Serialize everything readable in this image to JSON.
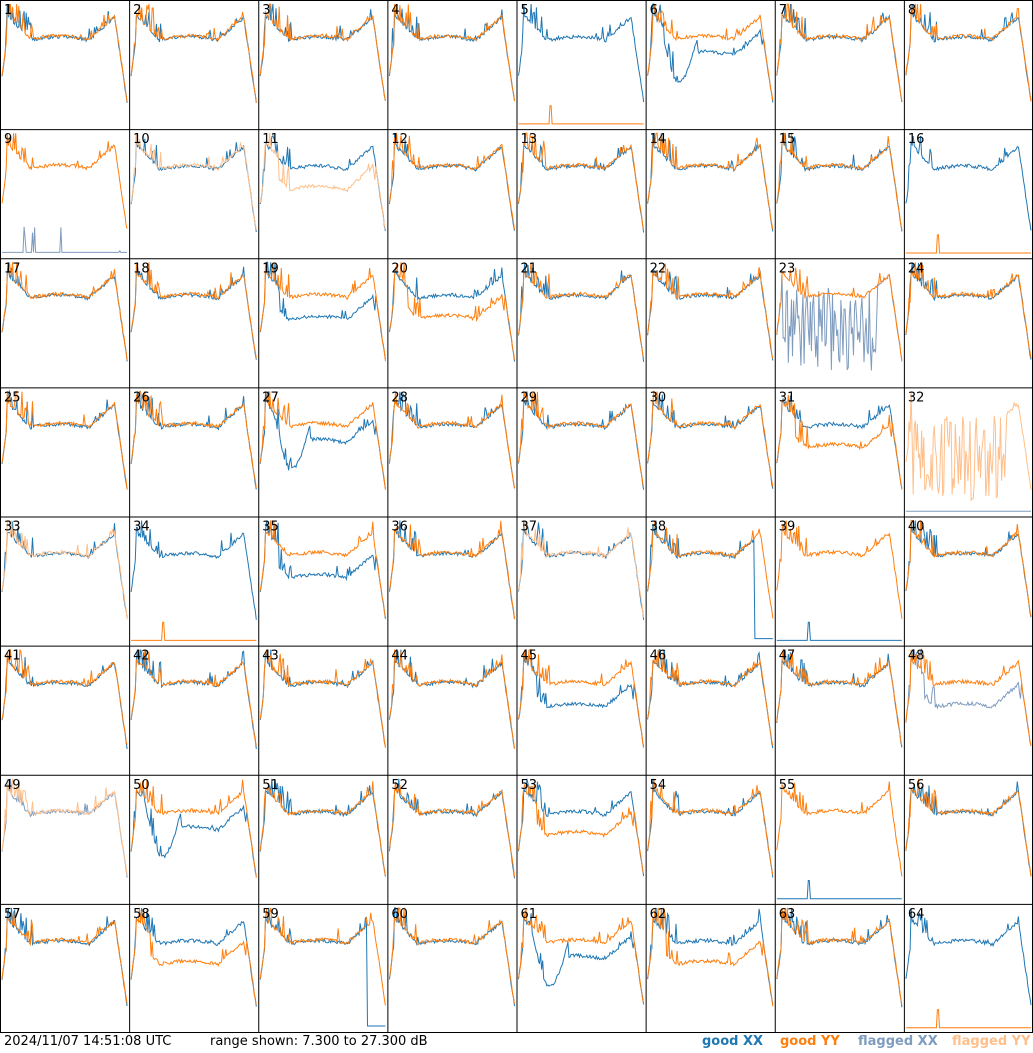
{
  "chart_data": {
    "type": "line",
    "layout": "8x8 small-multiples grid of bandpass spectra, one per tile",
    "tiles": [
      "1",
      "2",
      "3",
      "4",
      "5",
      "6",
      "7",
      "8",
      "9",
      "10",
      "11",
      "12",
      "13",
      "14",
      "15",
      "16",
      "17",
      "18",
      "19",
      "20",
      "21",
      "22",
      "23",
      "24",
      "25",
      "26",
      "27",
      "28",
      "29",
      "30",
      "31",
      "32",
      "33",
      "34",
      "35",
      "36",
      "37",
      "38",
      "39",
      "40",
      "41",
      "42",
      "43",
      "44",
      "45",
      "46",
      "47",
      "48",
      "49",
      "50",
      "51",
      "52",
      "53",
      "54",
      "55",
      "56",
      "57",
      "58",
      "59",
      "60",
      "61",
      "62",
      "63",
      "64"
    ],
    "ylim": [
      7.3,
      27.3
    ],
    "yunit": "dB",
    "series": [
      {
        "name": "good XX",
        "color": "#1f77b4"
      },
      {
        "name": "good YY",
        "color": "#ff7f0e"
      },
      {
        "name": "flagged XX",
        "color": "#7f9cbf"
      },
      {
        "name": "flagged YY",
        "color": "#ffbf8a"
      }
    ],
    "tile_styles": {
      "1": {
        "xx": "good",
        "yy": "good",
        "shape": "normal"
      },
      "5": {
        "xx": "good",
        "yy": "good",
        "shape": "yy-dead"
      },
      "6": {
        "xx": "good",
        "yy": "good",
        "shape": "xx-dip"
      },
      "9": {
        "xx": "flagged",
        "yy": "good",
        "shape": "xx-spiky-low"
      },
      "10": {
        "xx": "good",
        "yy": "flagged",
        "shape": "normal"
      },
      "11": {
        "xx": "good",
        "yy": "flagged",
        "shape": "yy-low"
      },
      "16": {
        "xx": "good",
        "yy": "good",
        "shape": "yy-dead"
      },
      "19": {
        "xx": "good",
        "yy": "good",
        "shape": "xx-low"
      },
      "20": {
        "xx": "good",
        "yy": "good",
        "shape": "yy-low"
      },
      "23": {
        "xx": "flagged",
        "yy": "good",
        "shape": "xx-noisy"
      },
      "27": {
        "xx": "good",
        "yy": "good",
        "shape": "xx-dip"
      },
      "31": {
        "xx": "good",
        "yy": "good",
        "shape": "yy-low"
      },
      "32": {
        "xx": "flagged",
        "yy": "flagged",
        "shape": "flag-noisy"
      },
      "33": {
        "xx": "good",
        "yy": "flagged",
        "shape": "normal"
      },
      "34": {
        "xx": "good",
        "yy": "good",
        "shape": "yy-dead"
      },
      "35": {
        "xx": "good",
        "yy": "good",
        "shape": "xx-low"
      },
      "37": {
        "xx": "good",
        "yy": "flagged",
        "shape": "normal"
      },
      "38": {
        "xx": "good",
        "yy": "good",
        "shape": "xx-drop"
      },
      "39": {
        "xx": "good",
        "yy": "good",
        "shape": "xx-dead"
      },
      "45": {
        "xx": "good",
        "yy": "good",
        "shape": "xx-low"
      },
      "48": {
        "xx": "flagged",
        "yy": "good",
        "shape": "xx-low"
      },
      "49": {
        "xx": "flagged",
        "yy": "flagged",
        "shape": "normal"
      },
      "50": {
        "xx": "good",
        "yy": "good",
        "shape": "xx-dip"
      },
      "53": {
        "xx": "good",
        "yy": "good",
        "shape": "yy-low"
      },
      "55": {
        "xx": "good",
        "yy": "good",
        "shape": "xx-dead"
      },
      "58": {
        "xx": "good",
        "yy": "good",
        "shape": "yy-low"
      },
      "59": {
        "xx": "good",
        "yy": "good",
        "shape": "xx-drop"
      },
      "61": {
        "xx": "good",
        "yy": "good",
        "shape": "xx-dip"
      },
      "62": {
        "xx": "good",
        "yy": "good",
        "shape": "yy-low"
      },
      "64": {
        "xx": "good",
        "yy": "good",
        "shape": "yy-dead"
      }
    }
  },
  "footer": {
    "timestamp": "2024/11/07 14:51:08 UTC",
    "range": "range shown: 7.300 to 27.300 dB"
  },
  "legend": {
    "good_xx": "good XX",
    "good_yy": "good YY",
    "flagged_xx": "flagged XX",
    "flagged_yy": "flagged YY",
    "colors": {
      "good_xx": "#1f77b4",
      "good_yy": "#ff7f0e",
      "flagged_xx": "#7f9cbf",
      "flagged_yy": "#ffbf8a"
    }
  }
}
